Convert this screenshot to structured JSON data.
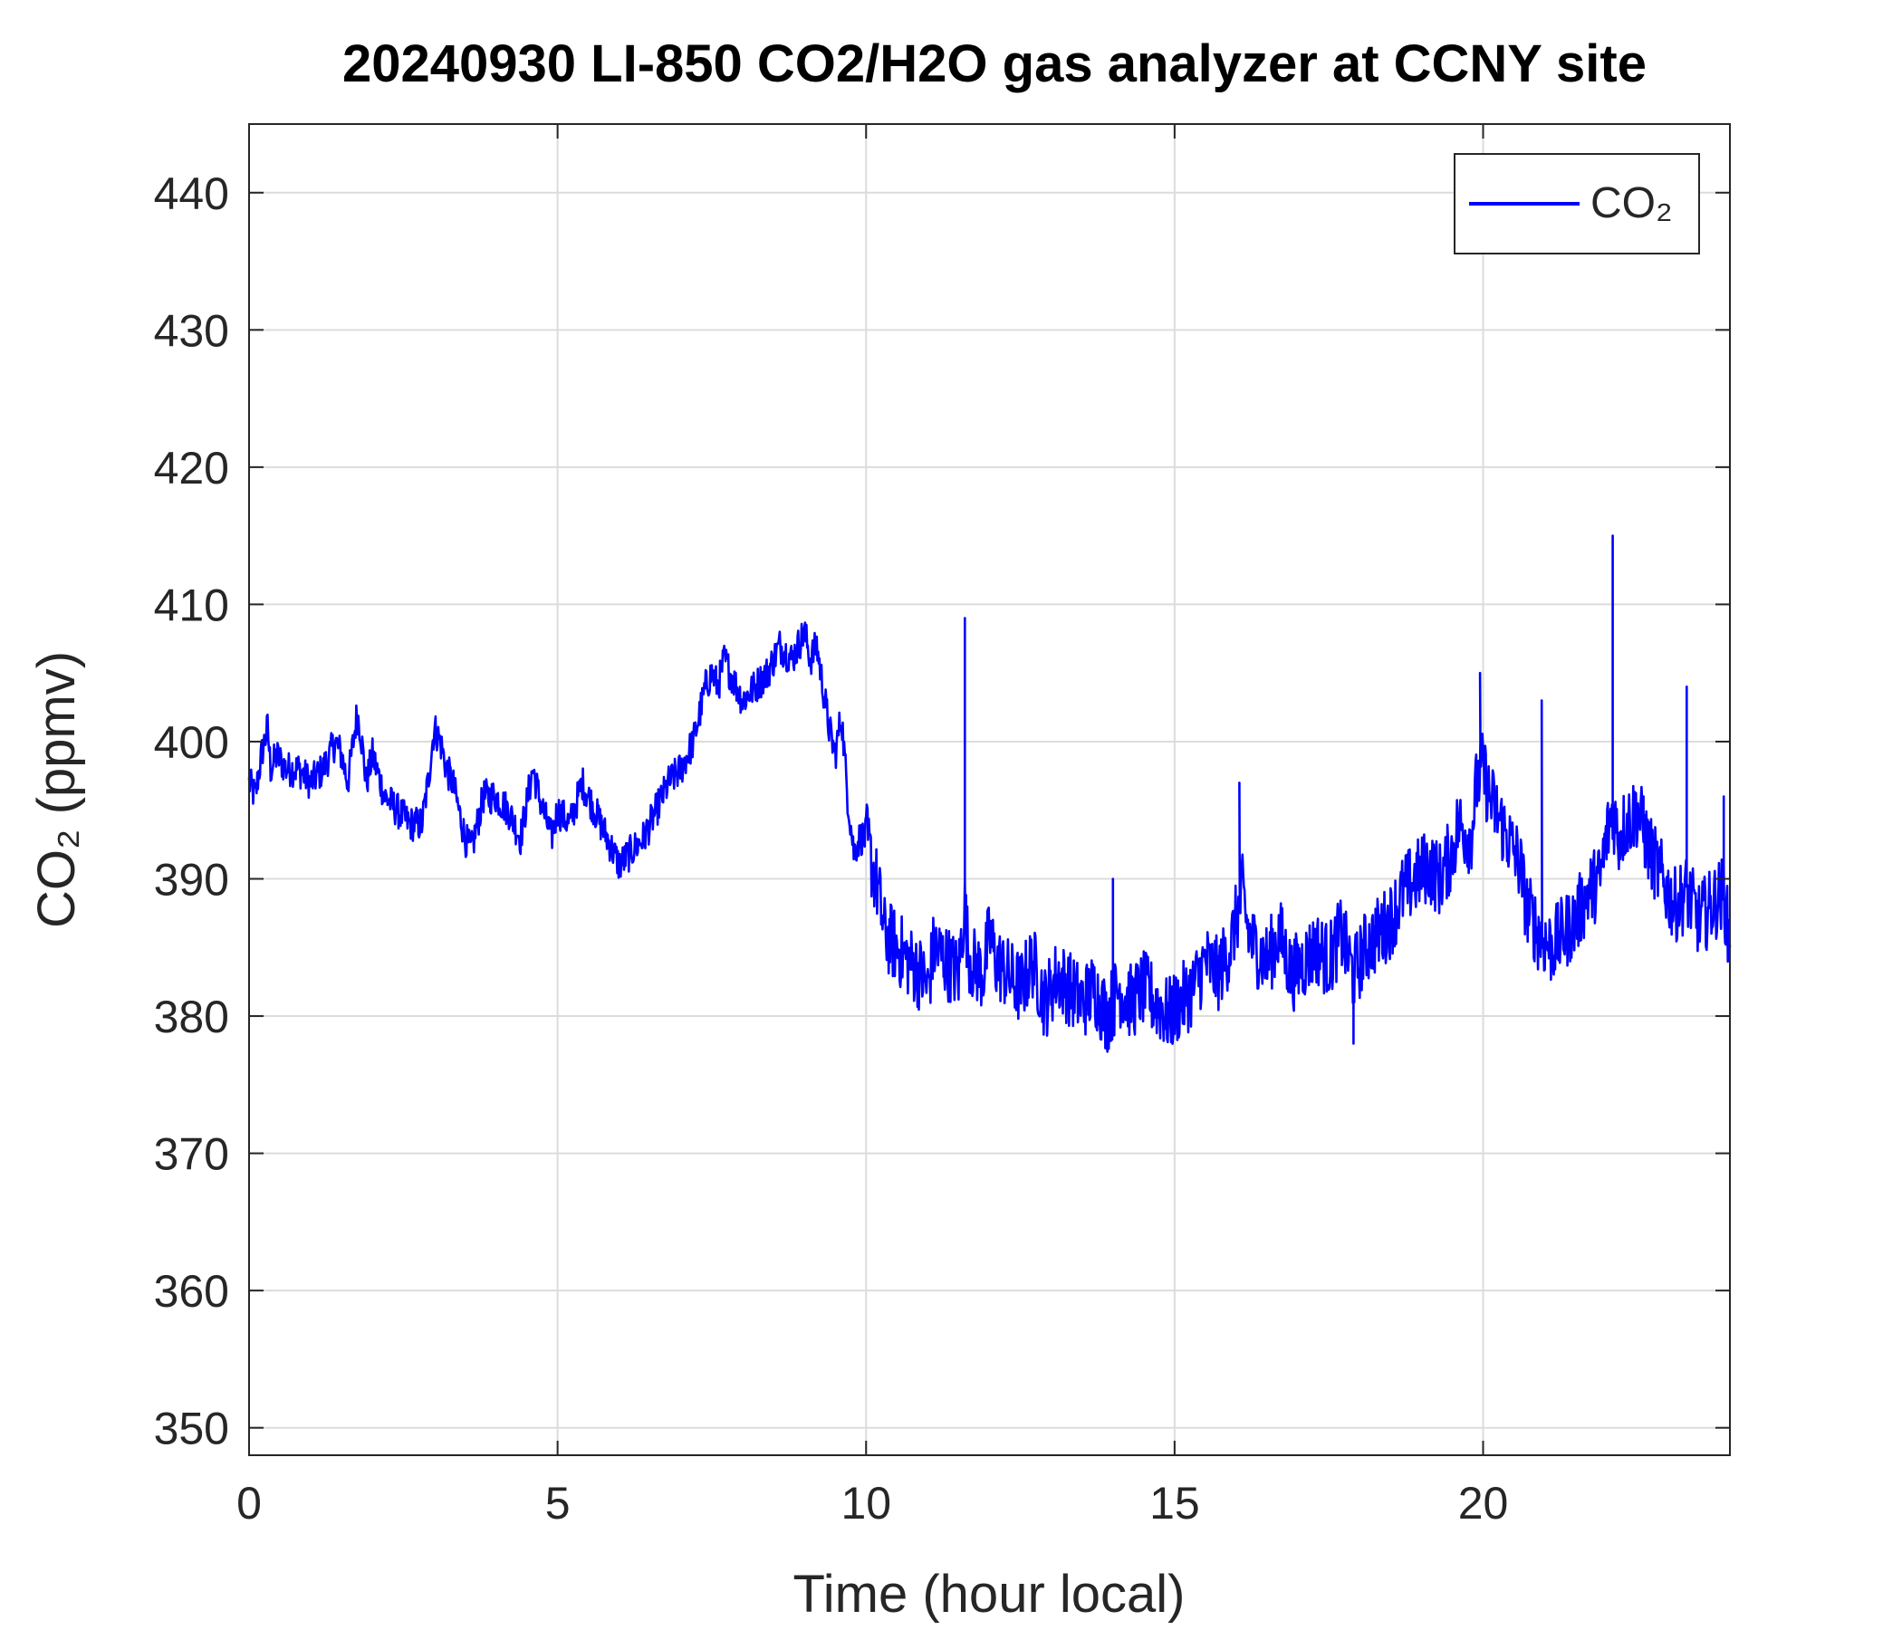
{
  "chart_data": {
    "type": "line",
    "title": "20240930 LI-850 CO2/H2O gas analyzer at CCNY site",
    "xlabel": "Time (hour local)",
    "ylabel": "CO₂ (ppmv)",
    "xlim": [
      0,
      24
    ],
    "ylim": [
      348,
      445
    ],
    "xticks": [
      0,
      5,
      10,
      15,
      20
    ],
    "yticks": [
      350,
      360,
      370,
      380,
      390,
      400,
      410,
      420,
      430,
      440
    ],
    "grid": true,
    "legend_position": "top-right",
    "legend_label": "CO₂",
    "series": [
      {
        "name": "CO₂",
        "color": "#0000ff",
        "x": [
          0.0,
          0.1,
          0.2,
          0.3,
          0.35,
          0.45,
          0.6,
          0.8,
          1.0,
          1.2,
          1.4,
          1.5,
          1.6,
          1.75,
          1.8,
          1.9,
          2.0,
          2.2,
          2.4,
          2.6,
          2.8,
          2.9,
          3.0,
          3.1,
          3.2,
          3.3,
          3.5,
          3.6,
          3.7,
          3.8,
          4.0,
          4.2,
          4.4,
          4.6,
          4.7,
          4.9,
          5.0,
          5.2,
          5.4,
          5.6,
          5.8,
          5.9,
          6.0,
          6.2,
          6.4,
          6.6,
          6.8,
          7.0,
          7.2,
          7.4,
          7.5,
          7.6,
          7.7,
          7.8,
          8.0,
          8.2,
          8.4,
          8.6,
          8.8,
          9.0,
          9.1,
          9.2,
          9.3,
          9.4,
          9.5,
          9.6,
          9.7,
          9.8,
          9.9,
          10.0,
          10.1,
          10.2,
          10.3,
          10.5,
          10.7,
          10.9,
          11.0,
          11.1,
          11.3,
          11.5,
          11.55,
          11.6,
          11.65,
          11.7,
          11.9,
          12.0,
          12.1,
          12.3,
          12.5,
          12.7,
          12.9,
          13.1,
          13.3,
          13.5,
          13.7,
          13.9,
          14.1,
          14.3,
          14.5,
          14.7,
          14.9,
          15.1,
          15.3,
          15.5,
          15.7,
          15.9,
          16.0,
          16.1,
          16.2,
          16.3,
          16.5,
          16.7,
          16.9,
          17.1,
          17.3,
          17.5,
          17.7,
          17.9,
          18.1,
          18.3,
          18.5,
          18.7,
          18.9,
          19.1,
          19.3,
          19.5,
          19.6,
          19.8,
          19.9,
          20.0,
          20.1,
          20.2,
          20.3,
          20.4,
          20.6,
          20.7,
          20.9,
          21.1,
          21.3,
          21.5,
          21.7,
          21.9,
          22.0,
          22.1,
          22.2,
          22.3,
          22.5,
          22.7,
          22.9,
          23.1,
          23.3,
          23.5,
          23.7,
          23.9,
          24.0
        ],
        "values": [
          397,
          396,
          399,
          401,
          398,
          399,
          398,
          398,
          397,
          398,
          400,
          399,
          397,
          402,
          401,
          397,
          399,
          396,
          395,
          394,
          394,
          397,
          401,
          400,
          398,
          397,
          393,
          392,
          394,
          396,
          396,
          395,
          393,
          398,
          396,
          393,
          395,
          394,
          397,
          395,
          393,
          392,
          391,
          392,
          393,
          395,
          397,
          398,
          400,
          404,
          405,
          404,
          406,
          405,
          403,
          404,
          405,
          407,
          406,
          408,
          406,
          407,
          404,
          401,
          399,
          402,
          396,
          392,
          393,
          393,
          391,
          389,
          386,
          385,
          384,
          383,
          382,
          385,
          384,
          383,
          386,
          388,
          385,
          384,
          383,
          386,
          384,
          383,
          382,
          384,
          381,
          383,
          382,
          381,
          382,
          380,
          382,
          381,
          382,
          381,
          380,
          381,
          382,
          384,
          383,
          385,
          387,
          389,
          386,
          385,
          384,
          386,
          383,
          384,
          385,
          384,
          386,
          383,
          385,
          386,
          387,
          389,
          390,
          391,
          390,
          392,
          394,
          393,
          397,
          398,
          396,
          395,
          394,
          393,
          391,
          388,
          386,
          385,
          386,
          387,
          389,
          390,
          393,
          395,
          393,
          394,
          395,
          392,
          390,
          388,
          389,
          387,
          388,
          389,
          385
        ]
      }
    ],
    "spikes": [
      {
        "x": 11.6,
        "y": 409
      },
      {
        "x": 14.0,
        "y": 390
      },
      {
        "x": 16.05,
        "y": 397
      },
      {
        "x": 17.9,
        "y": 378
      },
      {
        "x": 19.95,
        "y": 405
      },
      {
        "x": 20.95,
        "y": 403
      },
      {
        "x": 22.1,
        "y": 415
      },
      {
        "x": 22.6,
        "y": 396
      },
      {
        "x": 23.3,
        "y": 404
      },
      {
        "x": 23.9,
        "y": 396
      }
    ]
  }
}
